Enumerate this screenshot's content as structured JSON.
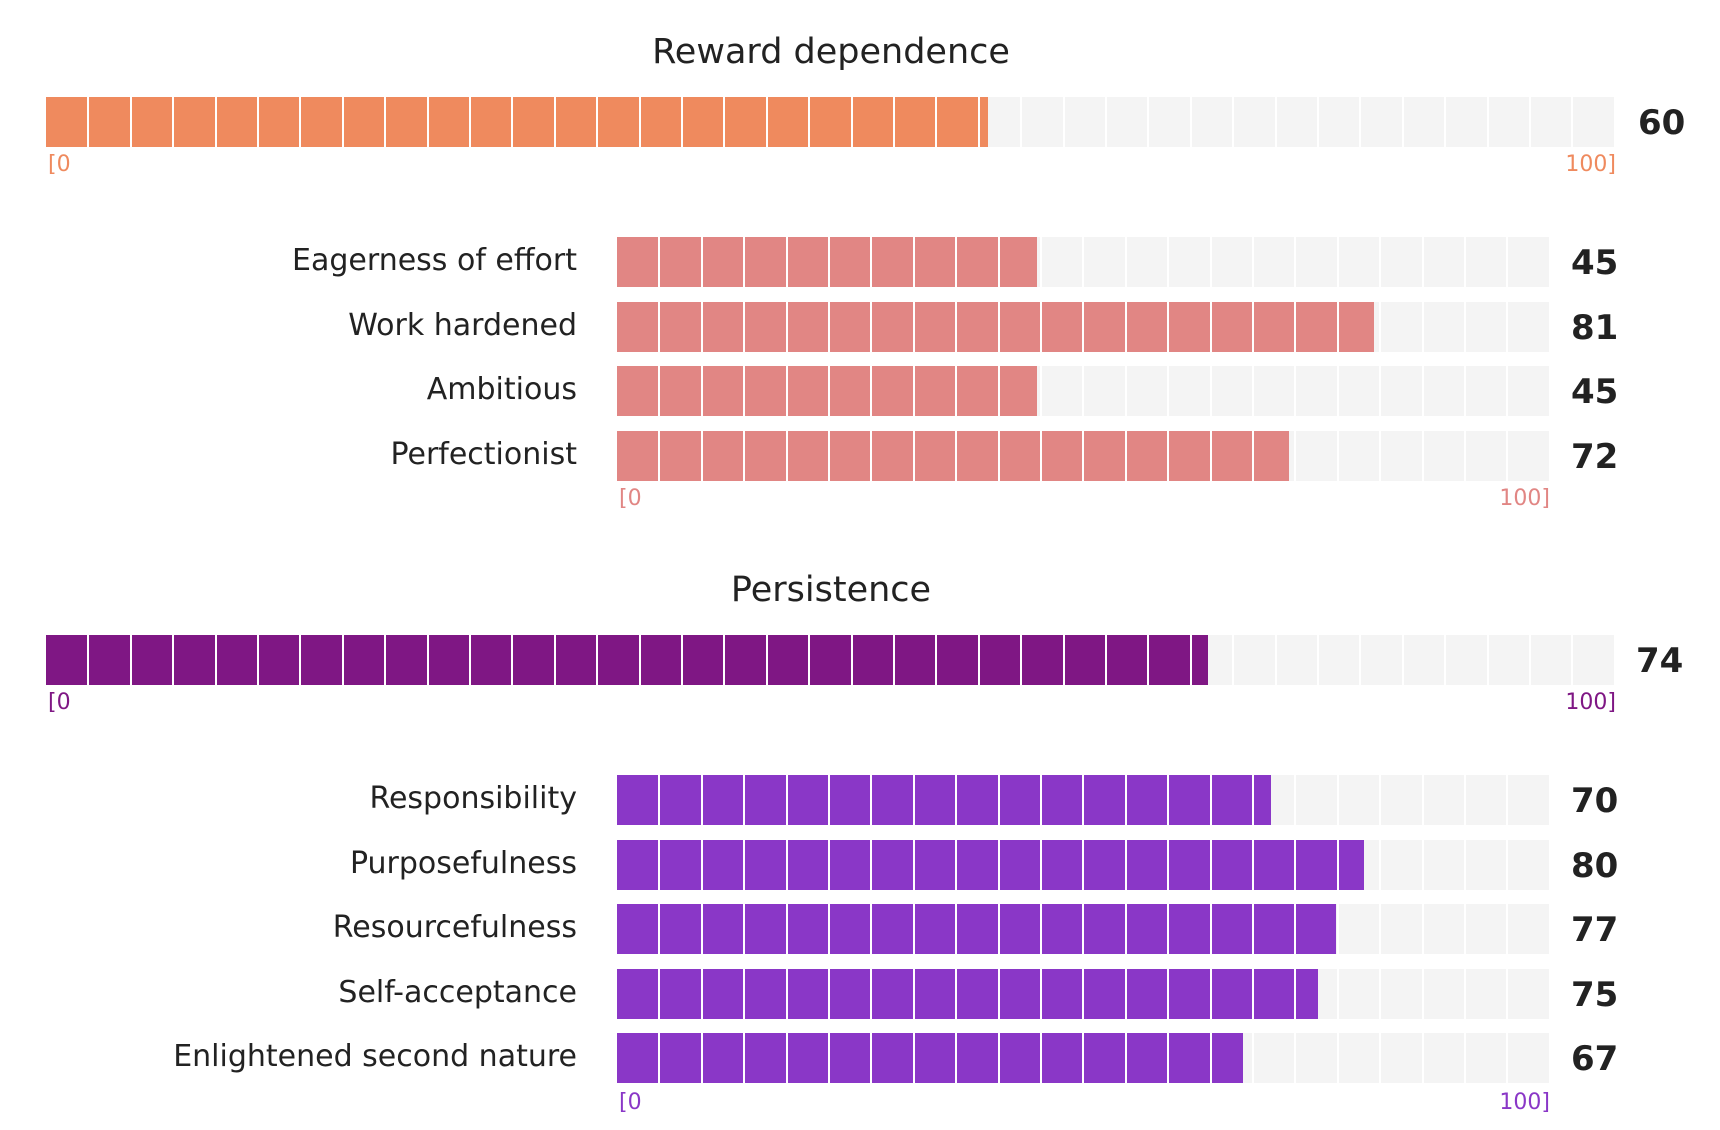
{
  "chart_data": [
    {
      "type": "bar",
      "title": "Reward dependence",
      "total": {
        "value": 60
      },
      "range": {
        "min_label": "[0",
        "max_label": "100]"
      },
      "xlim": [
        0,
        100
      ],
      "color": "#ef8a5e",
      "sub_color": "#e18684",
      "categories": [
        "Eagerness of effort",
        "Work hardened",
        "Ambitious",
        "Perfectionist"
      ],
      "values": [
        45,
        81,
        45,
        72
      ],
      "sub_range": {
        "min_label": "[0",
        "max_label": "100]"
      }
    },
    {
      "type": "bar",
      "title": "Persistence",
      "total": {
        "value": 74
      },
      "range": {
        "min_label": "[0",
        "max_label": "100]"
      },
      "xlim": [
        0,
        100
      ],
      "color": "#7f1784",
      "sub_color": "#8a37c7",
      "categories": [
        "Responsibility",
        "Purposefulness",
        "Resourcefulness",
        "Self-acceptance",
        "Enlightened second nature"
      ],
      "values": [
        70,
        80,
        77,
        75,
        67
      ],
      "sub_range": {
        "min_label": "[0",
        "max_label": "100]"
      }
    }
  ]
}
